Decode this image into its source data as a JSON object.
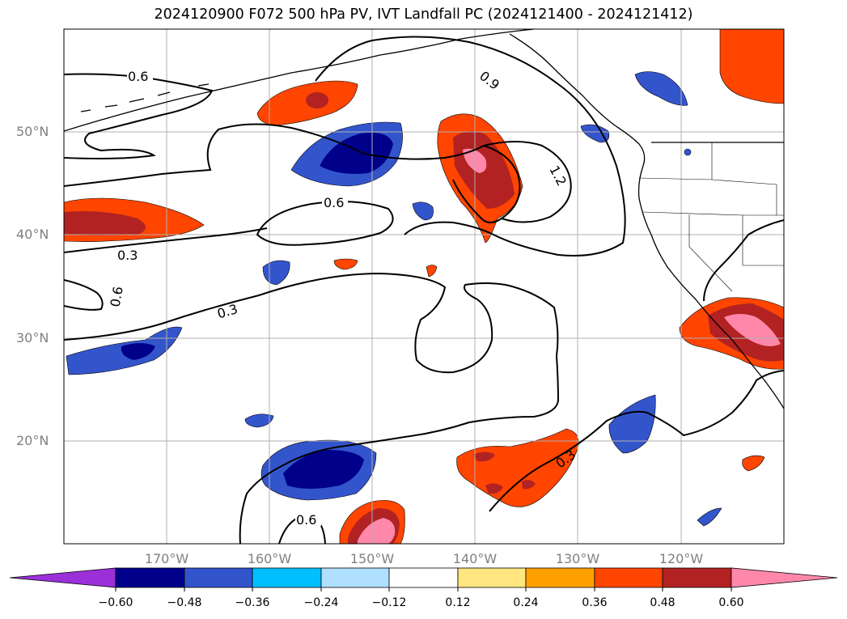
{
  "title": "2024120900 F072 500 hPa PV, IVT Landfall PC (2024121400 - 2024121412)",
  "lat_labels": [
    "50°N",
    "40°N",
    "30°N",
    "20°N"
  ],
  "lon_labels": [
    "170°W",
    "160°W",
    "150°W",
    "140°W",
    "130°W",
    "120°W"
  ],
  "contour_labels": [
    "0.6",
    "0.3",
    "0.6",
    "0.6",
    "0.3",
    "0.9",
    "1.2",
    "0.3",
    "0.6"
  ],
  "colorbar": {
    "ticks": [
      "−0.60",
      "−0.48",
      "−0.36",
      "−0.24",
      "−0.12",
      "0.12",
      "0.24",
      "0.36",
      "0.48",
      "0.60"
    ],
    "colors": [
      "#9b30d9",
      "#00008b",
      "#3355cc",
      "#00bfff",
      "#b0e0ff",
      "#ffffff",
      "#ffe680",
      "#ffa000",
      "#ff4500",
      "#b22222",
      "#ff88aa",
      "#ff88aa"
    ]
  }
}
